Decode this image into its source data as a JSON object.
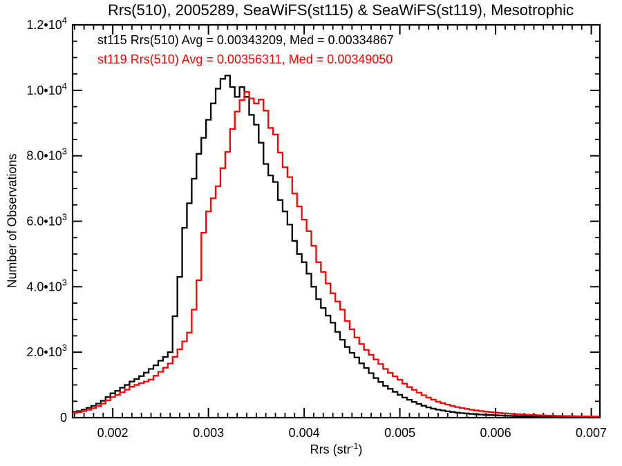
{
  "title": "Rrs(510), 2005289, SeaWiFS(st115) & SeaWiFS(st119), Mesotrophic",
  "annotations": [
    {
      "text": "st115 Rrs(510) Avg = 0.00343209, Med = 0.00334867",
      "color": "#000000"
    },
    {
      "text": "st119 Rrs(510) Avg = 0.00356311, Med = 0.00349050",
      "color": "#ff0000"
    }
  ],
  "chart_data": {
    "type": "line",
    "subtype": "step-histogram",
    "title": "Rrs(510), 2005289, SeaWiFS(st115) & SeaWiFS(st119), Mesotrophic",
    "xlabel_pre": "Rrs (str",
    "xlabel_sup": "-1",
    "xlabel_post": ")",
    "ylabel": "Number of Observations",
    "xlim": [
      0.00158,
      0.00709
    ],
    "ylim": [
      0,
      12000
    ],
    "grid": false,
    "legend_position": "top-left-text",
    "x_major_ticks": [
      {
        "v": 0.002,
        "label": "0.002"
      },
      {
        "v": 0.003,
        "label": "0.003"
      },
      {
        "v": 0.004,
        "label": "0.004"
      },
      {
        "v": 0.005,
        "label": "0.005"
      },
      {
        "v": 0.006,
        "label": "0.006"
      },
      {
        "v": 0.007,
        "label": "0.007"
      }
    ],
    "x_minor_step": 0.0001,
    "y_major_ticks": [
      {
        "v": 0,
        "mant": "0",
        "exp": ""
      },
      {
        "v": 2000,
        "mant": "2.0•10",
        "exp": "3"
      },
      {
        "v": 4000,
        "mant": "4.0•10",
        "exp": "3"
      },
      {
        "v": 6000,
        "mant": "6.0•10",
        "exp": "3"
      },
      {
        "v": 8000,
        "mant": "8.0•10",
        "exp": "3"
      },
      {
        "v": 10000,
        "mant": "1.0•10",
        "exp": "4"
      },
      {
        "v": 12000,
        "mant": "1.2•10",
        "exp": "4"
      }
    ],
    "y_minor_step": 500,
    "bin_half_width": 2.5e-05,
    "x": [
      0.0016,
      0.00165,
      0.0017,
      0.00175,
      0.0018,
      0.00185,
      0.0019,
      0.00195,
      0.002,
      0.00205,
      0.0021,
      0.00215,
      0.0022,
      0.00225,
      0.0023,
      0.00235,
      0.0024,
      0.00245,
      0.0025,
      0.00255,
      0.0026,
      0.00265,
      0.0027,
      0.00275,
      0.0028,
      0.00285,
      0.0029,
      0.00295,
      0.003,
      0.00305,
      0.0031,
      0.00315,
      0.0032,
      0.00325,
      0.0033,
      0.00335,
      0.0034,
      0.00345,
      0.0035,
      0.00355,
      0.0036,
      0.00365,
      0.0037,
      0.00375,
      0.0038,
      0.00385,
      0.0039,
      0.00395,
      0.004,
      0.00405,
      0.0041,
      0.00415,
      0.0042,
      0.00425,
      0.0043,
      0.00435,
      0.0044,
      0.00445,
      0.0045,
      0.00455,
      0.0046,
      0.00465,
      0.0047,
      0.00475,
      0.0048,
      0.00485,
      0.0049,
      0.00495,
      0.005,
      0.00505,
      0.0051,
      0.00515,
      0.0052,
      0.00525,
      0.0053,
      0.00535,
      0.0054,
      0.00545,
      0.0055,
      0.00555,
      0.0056,
      0.00565,
      0.0057,
      0.00575,
      0.0058,
      0.00585,
      0.0059,
      0.00595,
      0.006,
      0.00605,
      0.0061,
      0.00615,
      0.0062,
      0.00625,
      0.0063,
      0.00635,
      0.0064,
      0.00645,
      0.0065,
      0.00655,
      0.0066,
      0.00665,
      0.0067,
      0.00675,
      0.0068,
      0.00685,
      0.0069,
      0.00695,
      0.007,
      0.00705
    ],
    "series": [
      {
        "name": "st115 Rrs(510)",
        "color": "#000000",
        "values": [
          175,
          200,
          250,
          300,
          360,
          430,
          515,
          630,
          745,
          820,
          915,
          1000,
          1105,
          1180,
          1270,
          1375,
          1490,
          1600,
          1740,
          1855,
          2000,
          3100,
          4300,
          5800,
          6550,
          7300,
          8060,
          8550,
          9100,
          9600,
          10050,
          10350,
          10450,
          10100,
          9800,
          10100,
          9800,
          9250,
          8950,
          8400,
          7750,
          7400,
          7200,
          6650,
          6300,
          5900,
          5400,
          5000,
          4750,
          4400,
          4000,
          3620,
          3350,
          3120,
          2900,
          2620,
          2380,
          2160,
          1980,
          1840,
          1660,
          1520,
          1360,
          1210,
          1090,
          970,
          880,
          790,
          700,
          615,
          545,
          480,
          420,
          365,
          315,
          275,
          245,
          220,
          195,
          175,
          155,
          140,
          128,
          115,
          104,
          95,
          87,
          80,
          74,
          67,
          60,
          55,
          50,
          46,
          42,
          38,
          35,
          32,
          30,
          28,
          26,
          24,
          22,
          20,
          19,
          18,
          17,
          16,
          15,
          14
        ]
      },
      {
        "name": "st119 Rrs(510)",
        "color": "#ff0000",
        "values": [
          145,
          170,
          200,
          240,
          290,
          355,
          430,
          530,
          630,
          700,
          775,
          855,
          945,
          1000,
          1055,
          1105,
          1165,
          1280,
          1400,
          1525,
          1655,
          1860,
          2090,
          2330,
          2600,
          3300,
          4200,
          5650,
          6300,
          6700,
          7070,
          7620,
          8120,
          8820,
          9350,
          9700,
          9950,
          9750,
          9600,
          9720,
          9380,
          8850,
          8650,
          8100,
          7650,
          7350,
          6850,
          6450,
          6050,
          5700,
          5250,
          4750,
          4450,
          4100,
          3800,
          3550,
          3300,
          2950,
          2700,
          2450,
          2250,
          2070,
          1920,
          1780,
          1640,
          1490,
          1370,
          1260,
          1160,
          1040,
          935,
          850,
          765,
          685,
          615,
          550,
          490,
          445,
          400,
          360,
          325,
          295,
          268,
          243,
          220,
          202,
          185,
          170,
          157,
          144,
          132,
          121,
          111,
          102,
          94,
          87,
          80,
          74,
          69,
          64,
          60,
          56,
          52,
          49,
          46,
          44,
          42,
          40,
          38,
          36
        ]
      }
    ]
  }
}
